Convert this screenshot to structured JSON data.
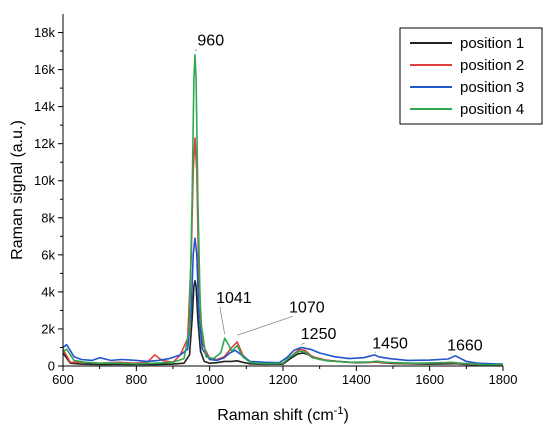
{
  "chart_data": {
    "type": "line",
    "title": "",
    "xlabel": "Raman shift (cm",
    "xlabel_sup": "-1",
    "xlabel_suffix": ")",
    "ylabel": "Raman signal (a.u.)",
    "xlim": [
      600,
      1800
    ],
    "ylim": [
      0,
      19000
    ],
    "x_ticks": [
      600,
      800,
      1000,
      1200,
      1400,
      1600,
      1800
    ],
    "y_ticks": [
      {
        "value": 0,
        "label": "0"
      },
      {
        "value": 2000,
        "label": "2k"
      },
      {
        "value": 4000,
        "label": "4k"
      },
      {
        "value": 6000,
        "label": "6k"
      },
      {
        "value": 8000,
        "label": "8k"
      },
      {
        "value": 10000,
        "label": "10k"
      },
      {
        "value": 12000,
        "label": "12k"
      },
      {
        "value": 14000,
        "label": "14k"
      },
      {
        "value": 16000,
        "label": "16k"
      },
      {
        "value": 18000,
        "label": "18k"
      }
    ],
    "legend_position": "top-right",
    "grid": false,
    "series": [
      {
        "name": "position 1",
        "color": "#222222",
        "x": [
          600,
          620,
          650,
          700,
          750,
          800,
          850,
          900,
          930,
          945,
          952,
          957,
          960,
          963,
          968,
          975,
          985,
          1000,
          1020,
          1040,
          1060,
          1075,
          1090,
          1110,
          1150,
          1200,
          1220,
          1240,
          1255,
          1270,
          1300,
          1350,
          1400,
          1440,
          1455,
          1470,
          1500,
          1550,
          1600,
          1650,
          1670,
          1685,
          1700,
          1750,
          1800
        ],
        "y": [
          700,
          150,
          100,
          80,
          90,
          80,
          80,
          100,
          150,
          600,
          2500,
          4300,
          4600,
          4300,
          2500,
          800,
          250,
          150,
          180,
          250,
          250,
          280,
          200,
          120,
          90,
          100,
          400,
          650,
          700,
          600,
          350,
          250,
          180,
          200,
          220,
          180,
          140,
          120,
          100,
          120,
          130,
          110,
          80,
          60,
          60
        ]
      },
      {
        "name": "position 2",
        "color": "#e04040",
        "x": [
          600,
          620,
          650,
          700,
          750,
          800,
          830,
          850,
          870,
          900,
          920,
          940,
          950,
          955,
          960,
          965,
          970,
          980,
          1000,
          1020,
          1040,
          1060,
          1075,
          1090,
          1110,
          1150,
          1200,
          1220,
          1245,
          1260,
          1280,
          1320,
          1380,
          1440,
          1455,
          1480,
          1550,
          1600,
          1660,
          1680,
          1720,
          1760,
          1800
        ],
        "y": [
          900,
          200,
          200,
          150,
          200,
          150,
          200,
          600,
          300,
          200,
          600,
          1500,
          6000,
          10500,
          12300,
          10500,
          5000,
          1200,
          400,
          350,
          500,
          1000,
          1300,
          600,
          200,
          120,
          150,
          500,
          900,
          850,
          500,
          300,
          200,
          200,
          220,
          180,
          140,
          160,
          180,
          150,
          80,
          40,
          80
        ]
      },
      {
        "name": "position 3",
        "color": "#2255cc",
        "x": [
          600,
          610,
          630,
          650,
          680,
          700,
          730,
          760,
          800,
          830,
          860,
          890,
          920,
          940,
          950,
          955,
          960,
          965,
          970,
          980,
          1000,
          1020,
          1040,
          1055,
          1070,
          1090,
          1110,
          1150,
          1190,
          1210,
          1230,
          1250,
          1275,
          1300,
          1340,
          1380,
          1420,
          1440,
          1450,
          1460,
          1490,
          1540,
          1600,
          1650,
          1670,
          1680,
          1700,
          1730,
          1770,
          1800
        ],
        "y": [
          1000,
          1150,
          500,
          350,
          300,
          450,
          300,
          350,
          300,
          250,
          300,
          400,
          600,
          900,
          3000,
          6000,
          6900,
          6000,
          3000,
          900,
          350,
          300,
          450,
          700,
          850,
          550,
          250,
          200,
          180,
          450,
          850,
          1000,
          900,
          700,
          500,
          400,
          450,
          550,
          600,
          500,
          400,
          300,
          320,
          380,
          550,
          450,
          250,
          150,
          120,
          100
        ]
      },
      {
        "name": "position 4",
        "color": "#2ea850",
        "x": [
          600,
          610,
          630,
          660,
          700,
          750,
          800,
          850,
          900,
          930,
          945,
          952,
          957,
          960,
          963,
          968,
          975,
          990,
          1010,
          1030,
          1041,
          1050,
          1060,
          1075,
          1090,
          1110,
          1150,
          1200,
          1220,
          1245,
          1260,
          1280,
          1320,
          1380,
          1440,
          1455,
          1480,
          1550,
          1600,
          1660,
          1680,
          1720,
          1760,
          1800
        ],
        "y": [
          800,
          900,
          300,
          200,
          150,
          150,
          120,
          150,
          200,
          400,
          2000,
          9000,
          15500,
          16800,
          15500,
          9000,
          2500,
          500,
          400,
          700,
          1500,
          1200,
          800,
          1100,
          500,
          200,
          120,
          150,
          500,
          800,
          750,
          450,
          280,
          200,
          220,
          260,
          200,
          150,
          160,
          200,
          160,
          100,
          60,
          80
        ]
      }
    ],
    "annotations": [
      {
        "text": "960",
        "x": 960,
        "y": 16900,
        "tx": 1003,
        "ty": 17300
      },
      {
        "text": "1041",
        "x": 1041,
        "y": 1600,
        "tx": 1066,
        "ty": 3400
      },
      {
        "text": "1070",
        "x": 1075,
        "y": 1550,
        "tx": 1265,
        "ty": 2900
      },
      {
        "text": "1250",
        "x": 1250,
        "y": 1050,
        "tx": 1297,
        "ty": 1450
      },
      {
        "text": "1450",
        "x": 1450,
        "y": 650,
        "tx": 1492,
        "ty": 950
      },
      {
        "text": "1660",
        "x": 1660,
        "y": 550,
        "tx": 1696,
        "ty": 850
      }
    ]
  }
}
